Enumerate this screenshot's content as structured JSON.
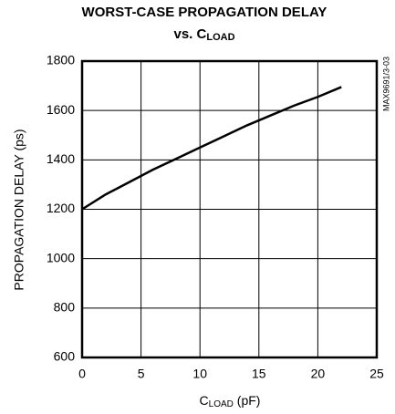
{
  "chart_data": {
    "type": "line",
    "title": "WORST-CASE PROPAGATION DELAY",
    "subtitle": [
      "vs. C",
      "LOAD"
    ],
    "xlabel": [
      "C",
      "LOAD",
      " (pF)"
    ],
    "ylabel": "PROPAGATION DELAY (ps)",
    "annotation": "MAX9691/3-03",
    "x": [
      0,
      2,
      4,
      6,
      8,
      10,
      12,
      14,
      16,
      18,
      20,
      22
    ],
    "series": [
      {
        "name": "delay",
        "color": "#000000",
        "values": [
          1200,
          1260,
          1310,
          1360,
          1405,
          1450,
          1495,
          1540,
          1580,
          1620,
          1655,
          1695
        ]
      }
    ],
    "xlim": [
      0,
      25
    ],
    "xticks": [
      0,
      5,
      10,
      15,
      20,
      25
    ],
    "ylim": [
      600,
      1800
    ],
    "yticks": [
      600,
      800,
      1000,
      1200,
      1400,
      1600,
      1800
    ],
    "grid": true
  }
}
